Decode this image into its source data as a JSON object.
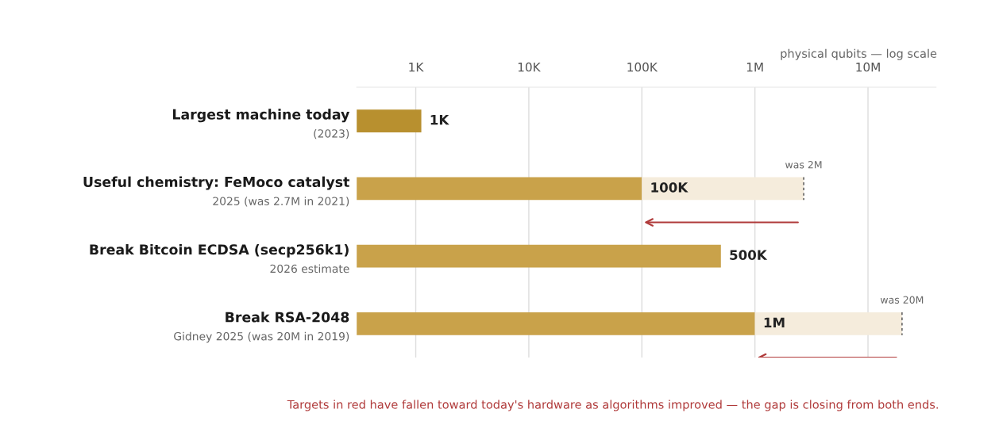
{
  "chart_data": {
    "type": "bar",
    "orientation": "horizontal",
    "stacked": true,
    "log": "x",
    "categories": [
      "Largest machine today\n(2023)",
      "Useful chemistry: FeMoco catalyst\n2025 (was 2.7M in 2021)",
      "Break Bitcoin ECDSA (secp256k1)\n2026 estimate",
      "Break RSA-2048\nGidney 2025 (was 20M in 2019)"
    ],
    "series": [
      {
        "values": [
          1120,
          100000,
          500000,
          1000000
        ],
        "colors": [
          "#b8902f",
          "#c9a24a",
          "#c9a24a",
          "#c9a24a"
        ],
        "value_labels": [
          "1K",
          "100K",
          "500K",
          "1M"
        ]
      },
      {
        "values": [
          null,
          2600000,
          null,
          19000000
        ],
        "color": "#f5ecdc"
      }
    ],
    "xlim": [
      300,
      40000000
    ],
    "xticks": [
      {
        "value": 1000,
        "label": "1K"
      },
      {
        "value": 10000,
        "label": "10K"
      },
      {
        "value": 100000,
        "label": "100K"
      },
      {
        "value": 1000000,
        "label": "1M"
      },
      {
        "value": 10000000,
        "label": "10M"
      }
    ],
    "xlabel": "physical qubits — log scale",
    "grid": "x",
    "annotations": [
      {
        "text": "was 2M",
        "x": 2700000,
        "y": "Useful chemistry: FeMoco catalyst\n2025 (was 2.7M in 2021)"
      },
      {
        "text": "was 20M",
        "x": 20000000,
        "y": "Break RSA-2048\nGidney 2025 (was 20M in 2019)"
      },
      "Targets in red have fallen toward today's hardware as algorithms improved — the gap is closing from both ends."
    ]
  }
}
